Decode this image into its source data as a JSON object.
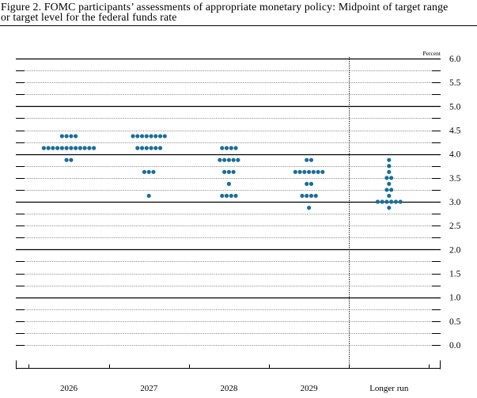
{
  "chart_data": {
    "type": "scatter",
    "title_lines": [
      "Figure 2. FOMC participants’ assessments of appropriate monetary policy: Midpoint of target range",
      "or target level for the federal funds rate"
    ],
    "ylabel": "Percent",
    "ylim": [
      0,
      6
    ],
    "grid": true,
    "y_ticks": [
      {
        "value": 6.0,
        "label": "6.0"
      },
      {
        "value": 5.5,
        "label": "5.5"
      },
      {
        "value": 5.0,
        "label": "5.0"
      },
      {
        "value": 4.5,
        "label": "4.5"
      },
      {
        "value": 4.0,
        "label": "4.0"
      },
      {
        "value": 3.5,
        "label": "3.5"
      },
      {
        "value": 3.0,
        "label": "3.0"
      },
      {
        "value": 2.5,
        "label": "2.5"
      },
      {
        "value": 2.0,
        "label": "2.0"
      },
      {
        "value": 1.5,
        "label": "1.5"
      },
      {
        "value": 1.0,
        "label": "1.0"
      },
      {
        "value": 0.5,
        "label": "0.5"
      },
      {
        "value": 0.0,
        "label": "0.0"
      }
    ],
    "categories": [
      "2026",
      "2027",
      "2028",
      "2029",
      "Longer run"
    ],
    "dot_color": "#1b6e98",
    "dots": [
      {
        "category": "2026",
        "points": [
          {
            "y": 4.375,
            "count": 4
          },
          {
            "y": 4.125,
            "count": 12
          },
          {
            "y": 3.875,
            "count": 2
          }
        ]
      },
      {
        "category": "2027",
        "points": [
          {
            "y": 4.375,
            "count": 8
          },
          {
            "y": 4.125,
            "count": 6
          },
          {
            "y": 3.625,
            "count": 3
          },
          {
            "y": 3.125,
            "count": 1
          }
        ]
      },
      {
        "category": "2028",
        "points": [
          {
            "y": 4.125,
            "count": 4
          },
          {
            "y": 3.875,
            "count": 5
          },
          {
            "y": 3.625,
            "count": 3
          },
          {
            "y": 3.375,
            "count": 1
          },
          {
            "y": 3.125,
            "count": 4
          }
        ]
      },
      {
        "category": "2029",
        "points": [
          {
            "y": 3.875,
            "count": 2
          },
          {
            "y": 3.625,
            "count": 7
          },
          {
            "y": 3.375,
            "count": 2
          },
          {
            "y": 3.125,
            "count": 4
          },
          {
            "y": 2.875,
            "count": 1
          }
        ]
      },
      {
        "category": "Longer run",
        "points": [
          {
            "y": 3.875,
            "count": 1
          },
          {
            "y": 3.75,
            "count": 1
          },
          {
            "y": 3.625,
            "count": 1
          },
          {
            "y": 3.5,
            "count": 2
          },
          {
            "y": 3.375,
            "count": 1
          },
          {
            "y": 3.25,
            "count": 2
          },
          {
            "y": 3.125,
            "count": 1
          },
          {
            "y": 3.0,
            "count": 6
          },
          {
            "y": 2.875,
            "count": 1
          }
        ]
      }
    ]
  }
}
